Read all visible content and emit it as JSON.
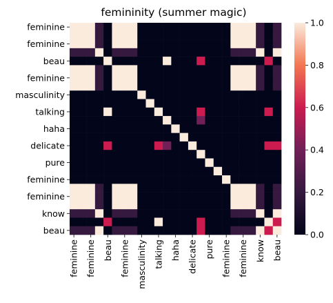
{
  "chart_data": {
    "type": "heatmap",
    "title": "femininity (summer magic)",
    "xlabel": "",
    "ylabel": "",
    "categories": [
      "feminine",
      "feminine",
      "feminine",
      "feminine",
      "beau",
      "beau",
      "feminine",
      "feminine",
      "feminine",
      "masculinity",
      "masculinity",
      "talking",
      "talking",
      "haha",
      "haha",
      "delicate",
      "delicate",
      "pure",
      "pure",
      "feminine",
      "feminine",
      "feminine",
      "feminine",
      "know",
      "beau"
    ],
    "x_tick_labels": [
      "feminine",
      "feminine",
      "beau",
      "feminine",
      "masculinity",
      "talking",
      "haha",
      "delicate",
      "pure",
      "feminine",
      "feminine",
      "know",
      "beau"
    ],
    "y_tick_labels": [
      "feminine",
      "feminine",
      "beau",
      "feminine",
      "masculinity",
      "talking",
      "haha",
      "delicate",
      "pure",
      "feminine",
      "feminine",
      "know",
      "beau"
    ],
    "matrix": [
      [
        1,
        1,
        1,
        0.2,
        0,
        1,
        1,
        1,
        0,
        0,
        0,
        0,
        0,
        0,
        0,
        0,
        0,
        0,
        0,
        1,
        1,
        1,
        0.2,
        0,
        0.2
      ],
      [
        1,
        1,
        1,
        0.2,
        0,
        1,
        1,
        1,
        0,
        0,
        0,
        0,
        0,
        0,
        0,
        0,
        0,
        0,
        0,
        1,
        1,
        1,
        0.2,
        0,
        0.2
      ],
      [
        1,
        1,
        1,
        0.2,
        0,
        1,
        1,
        1,
        0,
        0,
        0,
        0,
        0,
        0,
        0,
        0,
        0,
        0,
        0,
        1,
        1,
        1,
        0.2,
        0,
        0.2
      ],
      [
        0.2,
        0.2,
        0.2,
        1,
        0,
        0.2,
        0.2,
        0.2,
        0,
        0,
        0,
        0,
        0,
        0,
        0,
        0,
        0,
        0,
        0,
        0.2,
        0.2,
        0.2,
        1,
        0,
        1
      ],
      [
        0,
        0,
        0,
        0,
        1,
        0,
        0,
        0,
        0,
        0,
        0,
        1,
        0,
        0,
        0,
        0.6,
        0,
        0,
        0,
        0,
        0,
        0,
        0,
        0.6,
        0
      ],
      [
        1,
        1,
        1,
        0.2,
        0,
        1,
        1,
        1,
        0,
        0,
        0,
        0,
        0,
        0,
        0,
        0,
        0,
        0,
        0,
        1,
        1,
        1,
        0.2,
        0,
        0.2
      ],
      [
        1,
        1,
        1,
        0.2,
        0,
        1,
        1,
        1,
        0,
        0,
        0,
        0,
        0,
        0,
        0,
        0,
        0,
        0,
        0,
        1,
        1,
        1,
        0.2,
        0,
        0.2
      ],
      [
        1,
        1,
        1,
        0.2,
        0,
        1,
        1,
        1,
        0,
        0,
        0,
        0,
        0,
        0,
        0,
        0,
        0,
        0,
        0,
        1,
        1,
        1,
        0.2,
        0,
        0.2
      ],
      [
        0,
        0,
        0,
        0,
        0,
        0,
        0,
        0,
        1,
        0,
        0,
        0,
        0,
        0,
        0,
        0,
        0,
        0,
        0,
        0,
        0,
        0,
        0,
        0,
        0
      ],
      [
        0,
        0,
        0,
        0,
        0,
        0,
        0,
        0,
        0,
        1,
        0,
        0,
        0,
        0,
        0,
        0,
        0,
        0,
        0,
        0,
        0,
        0,
        0,
        0,
        0
      ],
      [
        0,
        0,
        0,
        0,
        1,
        0,
        0,
        0,
        0,
        0,
        1,
        0,
        0,
        0,
        0,
        0.6,
        0,
        0,
        0,
        0,
        0,
        0,
        0,
        0.6,
        0
      ],
      [
        0,
        0,
        0,
        0,
        0,
        0,
        0,
        0,
        0,
        0,
        0,
        1,
        0,
        0,
        0,
        0.4,
        0,
        0,
        0,
        0,
        0,
        0,
        0,
        0,
        0
      ],
      [
        0,
        0,
        0,
        0,
        0,
        0,
        0,
        0,
        0,
        0,
        0,
        0,
        1,
        0,
        0,
        0,
        0,
        0,
        0,
        0,
        0,
        0,
        0,
        0,
        0
      ],
      [
        0,
        0,
        0,
        0,
        0,
        0,
        0,
        0,
        0,
        0,
        0,
        0,
        0,
        1,
        0,
        0,
        0,
        0,
        0,
        0,
        0,
        0,
        0,
        0,
        0
      ],
      [
        0,
        0,
        0,
        0,
        0.6,
        0,
        0,
        0,
        0,
        0,
        0.6,
        0.4,
        0,
        0,
        1,
        0,
        0,
        0,
        0,
        0,
        0,
        0,
        0,
        0.6,
        0.6
      ],
      [
        0,
        0,
        0,
        0,
        0,
        0,
        0,
        0,
        0,
        0,
        0,
        0,
        0,
        0,
        0,
        1,
        0,
        0,
        0,
        0,
        0,
        0,
        0,
        0,
        0
      ],
      [
        0,
        0,
        0,
        0,
        0,
        0,
        0,
        0,
        0,
        0,
        0,
        0,
        0,
        0,
        0,
        0,
        1,
        0,
        0,
        0,
        0,
        0,
        0,
        0,
        0
      ],
      [
        0,
        0,
        0,
        0,
        0,
        0,
        0,
        0,
        0,
        0,
        0,
        0,
        0,
        0,
        0,
        0,
        0,
        1,
        0,
        0,
        0,
        0,
        0,
        0,
        0
      ],
      [
        0,
        0,
        0,
        0,
        0,
        0,
        0,
        0,
        0,
        0,
        0,
        0,
        0,
        0,
        0,
        0,
        0,
        0,
        1,
        0,
        0,
        0,
        0,
        0,
        0
      ],
      [
        1,
        1,
        1,
        0.2,
        0,
        1,
        1,
        1,
        0,
        0,
        0,
        0,
        0,
        0,
        0,
        0,
        0,
        0,
        0,
        1,
        1,
        1,
        0.2,
        0,
        0.2
      ],
      [
        1,
        1,
        1,
        0.2,
        0,
        1,
        1,
        1,
        0,
        0,
        0,
        0,
        0,
        0,
        0,
        0,
        0,
        0,
        0,
        1,
        1,
        1,
        0.2,
        0,
        0.2
      ],
      [
        1,
        1,
        1,
        0.2,
        0,
        1,
        1,
        1,
        0,
        0,
        0,
        0,
        0,
        0,
        0,
        0,
        0,
        0,
        0,
        1,
        1,
        1,
        0.2,
        0,
        0.2
      ],
      [
        0.2,
        0.2,
        0.2,
        1,
        0,
        0.2,
        0.2,
        0.2,
        0,
        0,
        0,
        0,
        0,
        0,
        0,
        0,
        0,
        0,
        0,
        0.2,
        0.2,
        0.2,
        1,
        0,
        1
      ],
      [
        0,
        0,
        0,
        0,
        0.6,
        0,
        0,
        0,
        0,
        0,
        1,
        0,
        0,
        0,
        0,
        0.6,
        0,
        0,
        0,
        0,
        0,
        0,
        0,
        1,
        0.6
      ],
      [
        0.2,
        0.2,
        0.2,
        1,
        0,
        0.2,
        0.2,
        0.2,
        0,
        0,
        0,
        0,
        0,
        0,
        0,
        0.6,
        0,
        0,
        0,
        0.2,
        0.2,
        0.2,
        1,
        0.6,
        1
      ]
    ],
    "colorbar": {
      "range": [
        0,
        1
      ],
      "ticks": [
        "0.0",
        "0.2",
        "0.4",
        "0.6",
        "0.8",
        "1.0"
      ],
      "colormap": "rocket"
    },
    "grid": false,
    "legend": "none"
  }
}
